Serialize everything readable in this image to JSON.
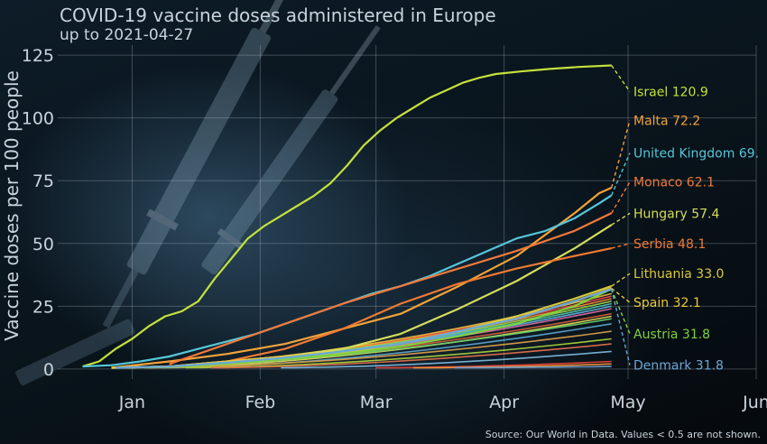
{
  "chart_data": {
    "type": "line",
    "title": "COVID-19 vaccine doses administered in Europe",
    "subtitle": "up to 2021-04-27",
    "ylabel": "Vaccine doses per 100 people",
    "xlabel": "",
    "source": "Source: Our World in Data. Values < 0.5 are not shown.",
    "x_ticks": [
      {
        "label": "Jan",
        "date": "2021-01-01"
      },
      {
        "label": "Feb",
        "date": "2021-02-01"
      },
      {
        "label": "Mar",
        "date": "2021-03-01"
      },
      {
        "label": "Apr",
        "date": "2021-04-01"
      },
      {
        "label": "May",
        "date": "2021-05-01"
      },
      {
        "label": "Jun",
        "date": "2021-06-01"
      }
    ],
    "xlim": [
      "2020-12-14",
      "2021-06-01"
    ],
    "y_ticks": [
      0,
      25,
      50,
      75,
      100,
      125
    ],
    "ylim": [
      -4,
      129
    ],
    "grid": true,
    "labeled_series": [
      {
        "name": "Israel",
        "label": "Israel 120.9",
        "color": "#c4e13c",
        "label_y": 110.5,
        "points": [
          [
            "2020-12-20",
            1
          ],
          [
            "2020-12-24",
            3
          ],
          [
            "2020-12-28",
            8
          ],
          [
            "2021-01-01",
            12
          ],
          [
            "2021-01-05",
            17
          ],
          [
            "2021-01-09",
            21
          ],
          [
            "2021-01-13",
            23
          ],
          [
            "2021-01-17",
            27
          ],
          [
            "2021-01-21",
            36
          ],
          [
            "2021-01-25",
            44
          ],
          [
            "2021-01-29",
            52
          ],
          [
            "2021-02-02",
            57
          ],
          [
            "2021-02-06",
            61
          ],
          [
            "2021-02-10",
            65
          ],
          [
            "2021-02-14",
            69
          ],
          [
            "2021-02-18",
            74
          ],
          [
            "2021-02-22",
            81
          ],
          [
            "2021-02-26",
            89
          ],
          [
            "2021-03-02",
            95
          ],
          [
            "2021-03-06",
            100
          ],
          [
            "2021-03-10",
            104
          ],
          [
            "2021-03-14",
            108
          ],
          [
            "2021-03-18",
            111
          ],
          [
            "2021-03-22",
            114
          ],
          [
            "2021-03-26",
            116
          ],
          [
            "2021-03-30",
            117.5
          ],
          [
            "2021-04-05",
            118.5
          ],
          [
            "2021-04-12",
            119.5
          ],
          [
            "2021-04-19",
            120.3
          ],
          [
            "2021-04-27",
            120.9
          ]
        ]
      },
      {
        "name": "Malta",
        "label": "Malta 72.2",
        "color": "#f3a33a",
        "label_y": 99,
        "points": [
          [
            "2020-12-27",
            0.5
          ],
          [
            "2021-01-10",
            3
          ],
          [
            "2021-01-24",
            6
          ],
          [
            "2021-02-07",
            10
          ],
          [
            "2021-02-21",
            16
          ],
          [
            "2021-03-07",
            22
          ],
          [
            "2021-03-21",
            33
          ],
          [
            "2021-04-04",
            45
          ],
          [
            "2021-04-18",
            62
          ],
          [
            "2021-04-24",
            70
          ],
          [
            "2021-04-27",
            72.2
          ]
        ]
      },
      {
        "name": "United Kingdom",
        "label": "United Kingdom 69.",
        "color": "#55c6d9",
        "label_y": 86,
        "points": [
          [
            "2020-12-20",
            1
          ],
          [
            "2020-12-27",
            1.5
          ],
          [
            "2021-01-03",
            3
          ],
          [
            "2021-01-10",
            5
          ],
          [
            "2021-01-17",
            8
          ],
          [
            "2021-01-24",
            11
          ],
          [
            "2021-01-31",
            14
          ],
          [
            "2021-02-07",
            18
          ],
          [
            "2021-02-14",
            22
          ],
          [
            "2021-02-21",
            26
          ],
          [
            "2021-02-28",
            30
          ],
          [
            "2021-03-07",
            33
          ],
          [
            "2021-03-14",
            37
          ],
          [
            "2021-03-21",
            42
          ],
          [
            "2021-03-28",
            47
          ],
          [
            "2021-04-04",
            52
          ],
          [
            "2021-04-11",
            55
          ],
          [
            "2021-04-18",
            60
          ],
          [
            "2021-04-24",
            66
          ],
          [
            "2021-04-27",
            69.2
          ]
        ]
      },
      {
        "name": "Monaco",
        "label": "Monaco 62.1",
        "color": "#f2793a",
        "label_y": 74.5,
        "points": [
          [
            "2021-01-10",
            2
          ],
          [
            "2021-01-24",
            10
          ],
          [
            "2021-02-07",
            18
          ],
          [
            "2021-02-21",
            26
          ],
          [
            "2021-03-07",
            33
          ],
          [
            "2021-03-21",
            40
          ],
          [
            "2021-04-04",
            47
          ],
          [
            "2021-04-18",
            55
          ],
          [
            "2021-04-27",
            62.1
          ]
        ]
      },
      {
        "name": "Hungary",
        "label": "Hungary 57.4",
        "color": "#d5dd5a",
        "label_y": 62,
        "points": [
          [
            "2020-12-27",
            0.5
          ],
          [
            "2021-01-10",
            1
          ],
          [
            "2021-01-24",
            3
          ],
          [
            "2021-02-07",
            5
          ],
          [
            "2021-02-21",
            8
          ],
          [
            "2021-03-07",
            14
          ],
          [
            "2021-03-21",
            24
          ],
          [
            "2021-04-04",
            35
          ],
          [
            "2021-04-18",
            48
          ],
          [
            "2021-04-27",
            57.4
          ]
        ]
      },
      {
        "name": "Serbia",
        "label": "Serbia 48.1",
        "color": "#f07a32",
        "label_y": 50,
        "points": [
          [
            "2020-12-27",
            0.5
          ],
          [
            "2021-01-10",
            1
          ],
          [
            "2021-01-24",
            3
          ],
          [
            "2021-02-07",
            8
          ],
          [
            "2021-02-21",
            16
          ],
          [
            "2021-03-07",
            26
          ],
          [
            "2021-03-21",
            34
          ],
          [
            "2021-04-04",
            40
          ],
          [
            "2021-04-18",
            45
          ],
          [
            "2021-04-27",
            48.1
          ]
        ]
      },
      {
        "name": "Lithuania",
        "label": "Lithuania 33.0",
        "color": "#d9c93c",
        "label_y": 38,
        "points": [
          [
            "2020-12-28",
            0.5
          ],
          [
            "2021-01-10",
            1
          ],
          [
            "2021-01-24",
            2.5
          ],
          [
            "2021-02-07",
            4
          ],
          [
            "2021-02-21",
            6.5
          ],
          [
            "2021-03-07",
            10
          ],
          [
            "2021-03-21",
            15
          ],
          [
            "2021-04-04",
            21
          ],
          [
            "2021-04-18",
            28
          ],
          [
            "2021-04-27",
            33.0
          ]
        ]
      },
      {
        "name": "Spain",
        "label": "Spain 32.1",
        "color": "#e8c93a",
        "label_y": 26.5,
        "points": [
          [
            "2020-12-27",
            0.5
          ],
          [
            "2021-01-10",
            1
          ],
          [
            "2021-01-24",
            3
          ],
          [
            "2021-02-07",
            5
          ],
          [
            "2021-02-21",
            7
          ],
          [
            "2021-03-07",
            10
          ],
          [
            "2021-03-21",
            15
          ],
          [
            "2021-04-04",
            20
          ],
          [
            "2021-04-18",
            27
          ],
          [
            "2021-04-27",
            32.1
          ]
        ]
      },
      {
        "name": "Austria",
        "label": "Austria 31.8",
        "color": "#7ed13c",
        "label_y": 14,
        "points": [
          [
            "2020-12-28",
            0.5
          ],
          [
            "2021-01-10",
            0.8
          ],
          [
            "2021-01-24",
            2
          ],
          [
            "2021-02-07",
            4
          ],
          [
            "2021-02-21",
            6
          ],
          [
            "2021-03-07",
            9
          ],
          [
            "2021-03-21",
            13
          ],
          [
            "2021-04-04",
            18
          ],
          [
            "2021-04-18",
            25
          ],
          [
            "2021-04-27",
            31.8
          ]
        ]
      },
      {
        "name": "Denmark",
        "label": "Denmark 31.8",
        "color": "#6aa7d9",
        "label_y": 1.5,
        "points": [
          [
            "2020-12-28",
            0.5
          ],
          [
            "2021-01-10",
            1
          ],
          [
            "2021-01-24",
            2.5
          ],
          [
            "2021-02-07",
            4.5
          ],
          [
            "2021-02-21",
            7
          ],
          [
            "2021-03-07",
            10
          ],
          [
            "2021-03-21",
            15
          ],
          [
            "2021-04-04",
            20
          ],
          [
            "2021-04-18",
            27
          ],
          [
            "2021-04-27",
            31.8
          ]
        ]
      }
    ],
    "other_series": [
      {
        "color": "#e64848",
        "start": "2020-12-28",
        "end": 29
      },
      {
        "color": "#f08a3a",
        "start": "2020-12-28",
        "end": 28
      },
      {
        "color": "#e7b83c",
        "start": "2020-12-28",
        "end": 30
      },
      {
        "color": "#9fd24a",
        "start": "2020-12-28",
        "end": 27
      },
      {
        "color": "#52c4a8",
        "start": "2020-12-28",
        "end": 26
      },
      {
        "color": "#5fb1d8",
        "start": "2020-12-28",
        "end": 25
      },
      {
        "color": "#d868a4",
        "start": "2020-12-28",
        "end": 24
      },
      {
        "color": "#cf5a3a",
        "start": "2020-12-30",
        "end": 22
      },
      {
        "color": "#e0d650",
        "start": "2021-01-04",
        "end": 21
      },
      {
        "color": "#6acb6a",
        "start": "2020-12-28",
        "end": 20
      },
      {
        "color": "#58a3c9",
        "start": "2021-01-08",
        "end": 18
      },
      {
        "color": "#d99c48",
        "start": "2021-01-05",
        "end": 15
      },
      {
        "color": "#a7d03a",
        "start": "2021-01-14",
        "end": 12
      },
      {
        "color": "#e06f4a",
        "start": "2021-01-20",
        "end": 10
      },
      {
        "color": "#7db6da",
        "start": "2021-02-06",
        "end": 7
      },
      {
        "color": "#e2423a",
        "start": "2021-03-01",
        "end": 3
      },
      {
        "color": "#f3943a",
        "start": "2021-03-10",
        "end": 2
      },
      {
        "color": "#6f9fcf",
        "start": "2021-03-20",
        "end": 1
      }
    ]
  }
}
